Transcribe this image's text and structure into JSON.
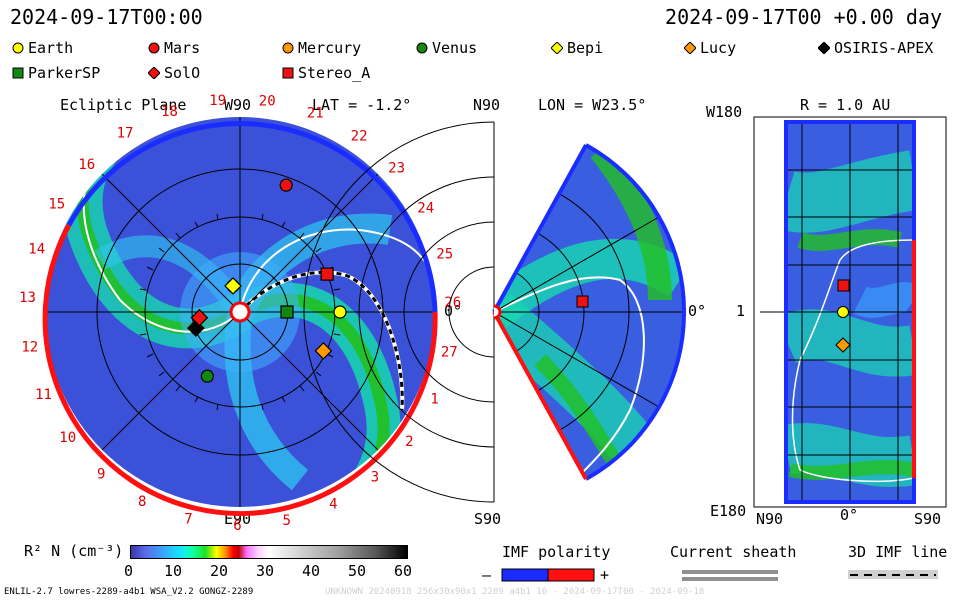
{
  "header": {
    "datetime_left": "2024-09-17T00:00",
    "datetime_right": "2024-09-17T00 +0.00 day"
  },
  "legend": [
    {
      "label": "Earth",
      "shape": "circle",
      "color": "#ffff00"
    },
    {
      "label": "Mars",
      "shape": "circle",
      "color": "#ee1111"
    },
    {
      "label": "Mercury",
      "shape": "circle",
      "color": "#ff9900"
    },
    {
      "label": "Venus",
      "shape": "circle",
      "color": "#118811"
    },
    {
      "label": "Bepi",
      "shape": "diamond",
      "color": "#ffff00"
    },
    {
      "label": "Lucy",
      "shape": "diamond",
      "color": "#ff9900"
    },
    {
      "label": "OSIRIS-APEX",
      "shape": "diamond",
      "color": "#000000"
    },
    {
      "label": "ParkerSP",
      "shape": "square",
      "color": "#118811"
    },
    {
      "label": "SolO",
      "shape": "diamond",
      "color": "#ee1111"
    },
    {
      "label": "Stereo_A",
      "shape": "square",
      "color": "#ee1111"
    }
  ],
  "panel1": {
    "title": "Ecliptic Plane",
    "lat": "LAT = -1.2°",
    "top_label": "W90",
    "bottom_label": "E90",
    "right_label": "0°",
    "carrington_labels": [
      "19",
      "20",
      "21",
      "22",
      "23",
      "24",
      "25",
      "26",
      "27",
      "1",
      "2",
      "3",
      "4",
      "5",
      "6",
      "7",
      "8",
      "9",
      "10",
      "11",
      "12",
      "13",
      "14",
      "15",
      "16",
      "17",
      "18"
    ]
  },
  "panel2": {
    "lon": "LON = W23.5°",
    "top_label": "N90",
    "bottom_label": "S90",
    "right_label": "0°"
  },
  "panel3": {
    "r": "R = 1.0 AU",
    "top_left": "W180",
    "mid_left": "1",
    "bottom_left": "E180",
    "x_labels": [
      "N90",
      "0°",
      "S90"
    ]
  },
  "colorbar": {
    "label": "R² N (cm⁻³)",
    "ticks": [
      "0",
      "10",
      "20",
      "30",
      "40",
      "50",
      "60"
    ],
    "min": 0,
    "max": 60
  },
  "bottom_legend": {
    "imf_polarity": "IMF polarity",
    "minus": "–",
    "plus": "+",
    "current_sheath": "Current sheath",
    "imf_line": "3D IMF line"
  },
  "footer": {
    "left": "ENLIL-2.7 lowres-2289-a4b1 WSA_V2.2 GONGZ-2289",
    "right": "UNKNOWN 20240918 256x30x90x1 2289 a4b1 16 - 2024-09-17T00 - 2024-09-18"
  },
  "chart_data": {
    "type": "heatmap",
    "quantity": "R² N (cm⁻³)",
    "range": [
      0,
      60
    ],
    "bodies_ecliptic": [
      {
        "name": "Earth",
        "angle_deg": 0,
        "r_au": 1.0
      },
      {
        "name": "Mars",
        "angle_deg": 70,
        "r_au": 1.35
      },
      {
        "name": "Mercury",
        "angle_deg": 105,
        "r_au": 0.27
      },
      {
        "name": "Venus",
        "angle_deg": 243,
        "r_au": 0.72
      },
      {
        "name": "Bepi",
        "angle_deg": 105,
        "r_au": 0.27
      },
      {
        "name": "Lucy",
        "angle_deg": 335,
        "r_au": 0.92
      },
      {
        "name": "OSIRIS-APEX",
        "angle_deg": 200,
        "r_au": 0.47
      },
      {
        "name": "ParkerSP",
        "angle_deg": 0,
        "r_au": 0.47
      },
      {
        "name": "SolO",
        "angle_deg": 188,
        "r_au": 0.41
      },
      {
        "name": "Stereo_A",
        "angle_deg": 23.5,
        "r_au": 0.95
      }
    ]
  }
}
